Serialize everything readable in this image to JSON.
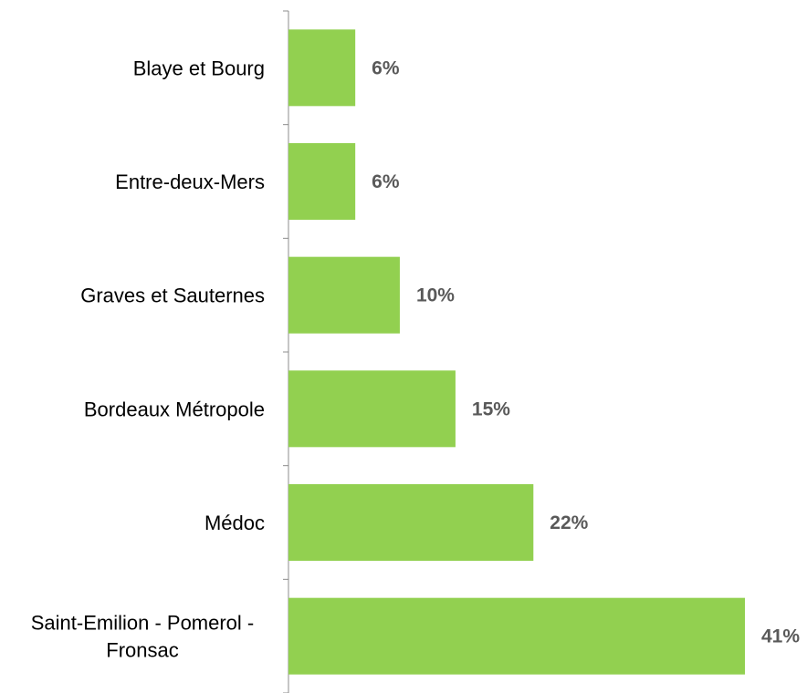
{
  "chart_data": {
    "type": "bar",
    "orientation": "horizontal",
    "categories": [
      [
        "Blaye et Bourg"
      ],
      [
        "Entre-deux-Mers"
      ],
      [
        "Graves et Sauternes"
      ],
      [
        "Bordeaux Métropole"
      ],
      [
        "Médoc"
      ],
      [
        "Saint-Emilion - Pomerol -",
        "Fronsac"
      ]
    ],
    "values": [
      6,
      6,
      10,
      15,
      22,
      41
    ],
    "value_labels": [
      "6%",
      "6%",
      "10%",
      "15%",
      "22%",
      "41%"
    ],
    "unit": "%",
    "xlim": [
      0,
      41
    ],
    "title": "",
    "xlabel": "",
    "ylabel": "",
    "grid": false,
    "legend": "none",
    "colors": {
      "bar": "#92d050",
      "value_label": "#595959",
      "category_label": "#000000",
      "axis": "#8c8c8c"
    }
  }
}
